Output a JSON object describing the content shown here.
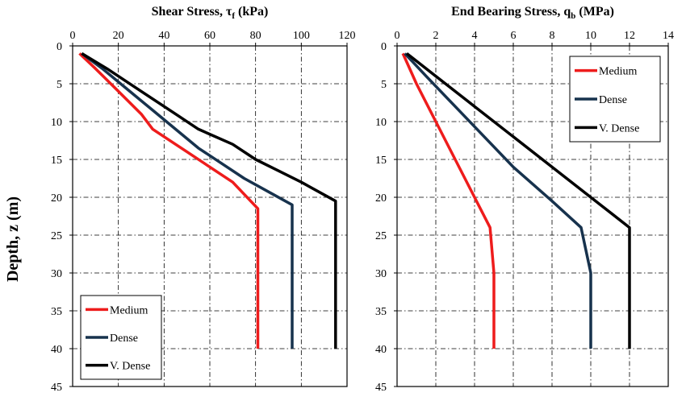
{
  "ylabel": "Depth, z (m)",
  "chart_data": [
    {
      "type": "line",
      "title": {
        "main": "Shear Stress, τ",
        "sub": "f",
        "unit": " (kPa)"
      },
      "xlim": [
        0,
        120
      ],
      "ylim": [
        0,
        45
      ],
      "y_inverted": true,
      "x_axis_position": "top",
      "xticks": [
        0,
        20,
        40,
        60,
        80,
        100,
        120
      ],
      "yticks": [
        0,
        5,
        10,
        15,
        20,
        25,
        30,
        35,
        40,
        45
      ],
      "grid": "dash-dot",
      "legend_placement": "bottom-left",
      "series": [
        {
          "name": "Medium",
          "color": "#ee1c1c",
          "points": [
            [
              3,
              1
            ],
            [
              10,
              3
            ],
            [
              20,
              6
            ],
            [
              30,
              9
            ],
            [
              35,
              11
            ],
            [
              45,
              13
            ],
            [
              50,
              14
            ],
            [
              60,
              16
            ],
            [
              70,
              18
            ],
            [
              81,
              21.5
            ],
            [
              81,
              40
            ]
          ]
        },
        {
          "name": "Dense",
          "color": "#17324d",
          "points": [
            [
              4,
              1
            ],
            [
              13,
              3
            ],
            [
              25,
              6
            ],
            [
              35,
              8.5
            ],
            [
              45,
              11
            ],
            [
              55,
              13.5
            ],
            [
              65,
              15.5
            ],
            [
              75,
              17.5
            ],
            [
              87,
              19.5
            ],
            [
              96,
              21
            ],
            [
              96,
              40
            ]
          ]
        },
        {
          "name": "V. Dense",
          "color": "#000000",
          "points": [
            [
              4,
              1
            ],
            [
              15,
              3
            ],
            [
              30,
              6
            ],
            [
              45,
              9
            ],
            [
              55,
              11
            ],
            [
              70,
              13
            ],
            [
              80,
              15
            ],
            [
              90,
              16.5
            ],
            [
              100,
              18
            ],
            [
              115,
              20.5
            ],
            [
              115,
              40
            ]
          ]
        }
      ]
    },
    {
      "type": "line",
      "title": {
        "main": "End Bearing Stress,  q",
        "sub": "b",
        "unit": " (MPa)"
      },
      "xlim": [
        0,
        14
      ],
      "ylim": [
        0,
        45
      ],
      "y_inverted": true,
      "x_axis_position": "top",
      "xticks": [
        0,
        2,
        4,
        6,
        8,
        10,
        12,
        14
      ],
      "yticks": [
        0,
        5,
        10,
        15,
        20,
        25,
        30,
        35,
        40,
        45
      ],
      "grid": "dash-dot",
      "legend_placement": "top-right",
      "series": [
        {
          "name": "Medium",
          "color": "#ee1c1c",
          "points": [
            [
              0.3,
              1
            ],
            [
              1,
              5
            ],
            [
              2,
              10
            ],
            [
              3,
              15
            ],
            [
              4,
              20
            ],
            [
              4.8,
              24
            ],
            [
              5,
              30
            ],
            [
              5,
              40
            ]
          ]
        },
        {
          "name": "Dense",
          "color": "#17324d",
          "points": [
            [
              0.4,
              1
            ],
            [
              1.5,
              4
            ],
            [
              3,
              8
            ],
            [
              4.5,
              12
            ],
            [
              6,
              16
            ],
            [
              8,
              20.5
            ],
            [
              9.5,
              24
            ],
            [
              10,
              30
            ],
            [
              10,
              40
            ]
          ]
        },
        {
          "name": "V. Dense",
          "color": "#000000",
          "points": [
            [
              0.5,
              1
            ],
            [
              2,
              4
            ],
            [
              4,
              8
            ],
            [
              6,
              12
            ],
            [
              8,
              16
            ],
            [
              10,
              20
            ],
            [
              12,
              24
            ],
            [
              12,
              30
            ],
            [
              12,
              40
            ]
          ]
        }
      ]
    }
  ]
}
